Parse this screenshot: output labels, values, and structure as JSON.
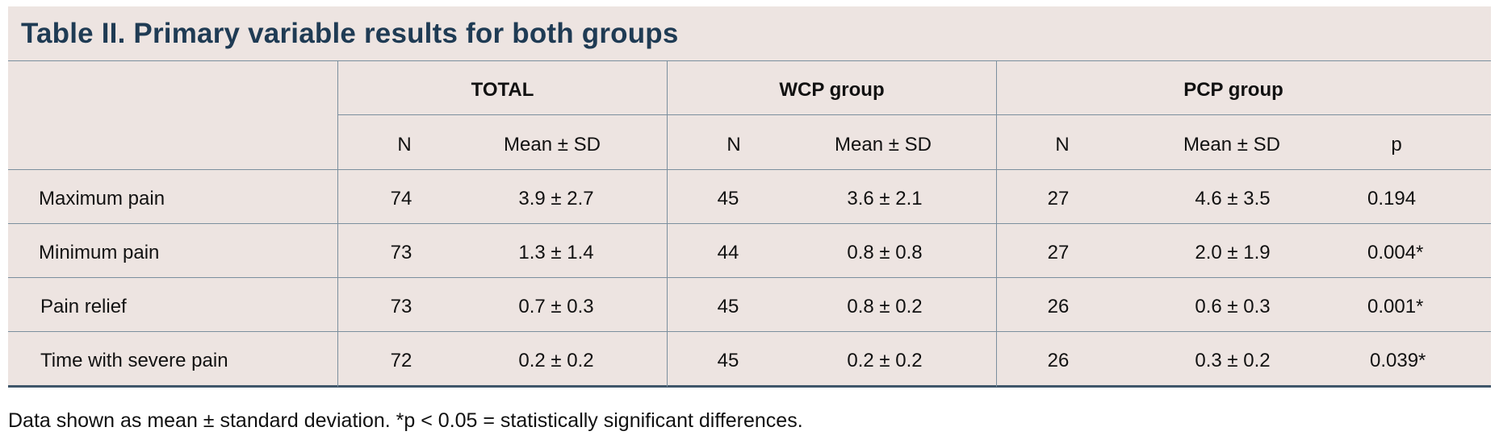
{
  "title": "Table II. Primary variable results for both groups",
  "group_headers": [
    "TOTAL",
    "WCP group",
    "PCP group"
  ],
  "sub_headers": [
    "N",
    "Mean ± SD",
    "N",
    "Mean ± SD",
    "N",
    "Mean ± SD",
    "p"
  ],
  "rows": [
    {
      "label": "Maximum pain",
      "cells": [
        "74",
        "3.9 ± 2.7",
        "45",
        "3.6 ± 2.1",
        "27",
        "4.6 ± 3.5",
        "0.194"
      ]
    },
    {
      "label": "Minimum pain",
      "cells": [
        "73",
        "1.3 ± 1.4",
        "44",
        "0.8 ± 0.8",
        "27",
        "2.0 ± 1.9",
        "0.004*"
      ]
    },
    {
      "label": "Pain relief",
      "cells": [
        "73",
        "0.7 ± 0.3",
        "45",
        "0.8 ± 0.2",
        "26",
        "0.6 ± 0.3",
        "0.001*"
      ]
    },
    {
      "label": "Time with severe pain",
      "cells": [
        "72",
        "0.2 ± 0.2",
        "45",
        "0.2 ± 0.2",
        "26",
        "0.3 ± 0.2",
        "0.039*"
      ]
    }
  ],
  "footnote": "Data shown as mean ± standard deviation. *p < 0.05 = statistically significant differences.",
  "colors": {
    "panel_bg": "#ede4e1",
    "title": "#1f3b54",
    "rule": "#7b8f9e",
    "rule_heavy": "#3f566a"
  }
}
